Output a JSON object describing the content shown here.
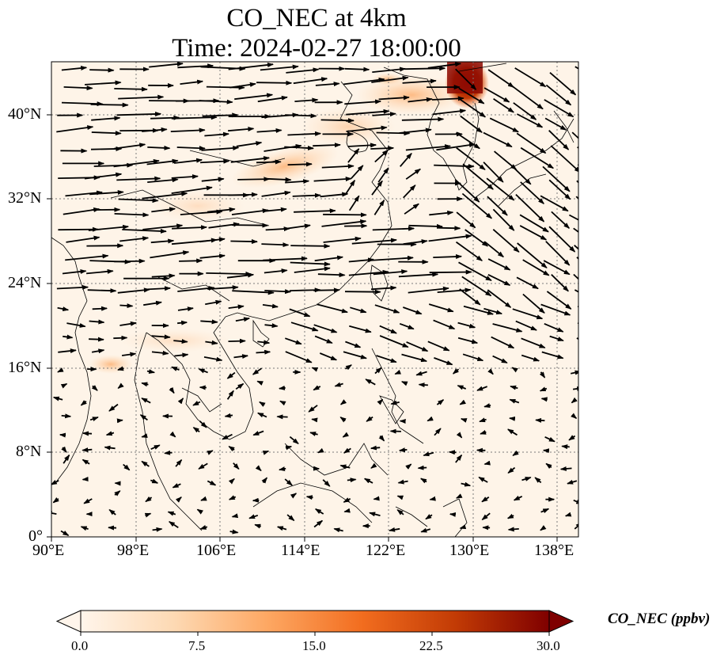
{
  "figure": {
    "title_line1": "CO_NEC at 4km",
    "title_line2": "Time: 2024-02-27 18:00:00"
  },
  "map": {
    "lon_ticks": [
      "90°E",
      "98°E",
      "106°E",
      "114°E",
      "122°E",
      "130°E",
      "138°E"
    ],
    "lat_ticks": [
      "0°",
      "8°N",
      "16°N",
      "24°N",
      "32°N",
      "40°N"
    ],
    "lon_range": [
      90,
      140
    ],
    "lat_range": [
      0,
      45
    ],
    "gridlines": true
  },
  "colorbar": {
    "label": "CO_NEC (ppbv)",
    "ticks": [
      "0.0",
      "7.5",
      "15.0",
      "22.5",
      "30.0"
    ],
    "range": [
      0,
      30
    ],
    "colormap_stops": [
      "#fff5eb",
      "#fdd9b3",
      "#fda762",
      "#f26d1f",
      "#c23b05",
      "#7f0000"
    ]
  }
}
